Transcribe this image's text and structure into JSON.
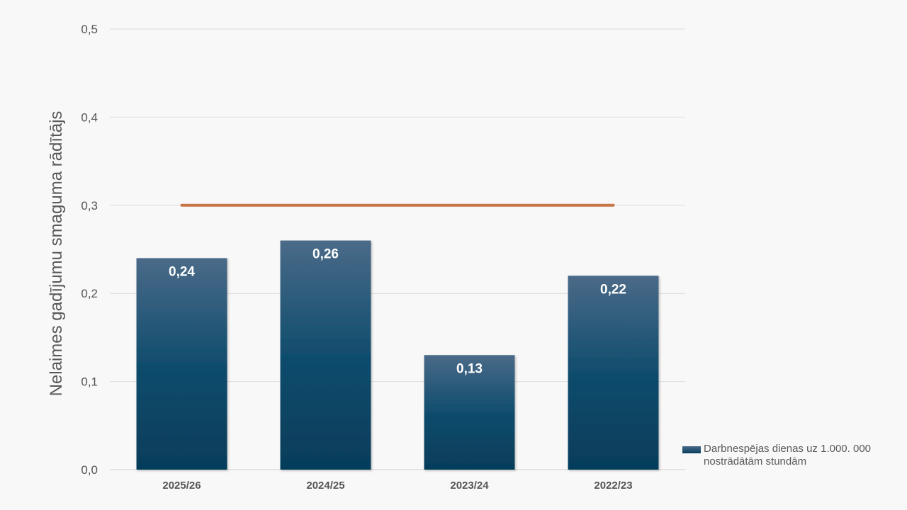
{
  "chart_data": {
    "type": "bar",
    "title": "",
    "xlabel": "",
    "ylabel": "Nelaimes gadījumu smaguma rādītājs",
    "categories": [
      "2025/26",
      "2024/25",
      "2023/24",
      "2022/23"
    ],
    "series": [
      {
        "name": "Darbnespējas dienas uz 1.000. 000 nostrādātām stundām",
        "values": [
          0.24,
          0.26,
          0.13,
          0.22
        ],
        "data_labels": [
          "0,24",
          "0,26",
          "0,13",
          "0,22"
        ],
        "color": "#06405e"
      }
    ],
    "target_line": {
      "value": 0.3,
      "color": "#c87646"
    },
    "ylim": [
      0,
      0.5
    ],
    "yticks": [
      0,
      0.1,
      0.2,
      0.3,
      0.4,
      0.5
    ],
    "ytick_labels": [
      "0,0",
      "0,1",
      "0,2",
      "0,3",
      "0,4",
      "0,5"
    ],
    "grid": true,
    "legend_position": "bottom-right"
  }
}
